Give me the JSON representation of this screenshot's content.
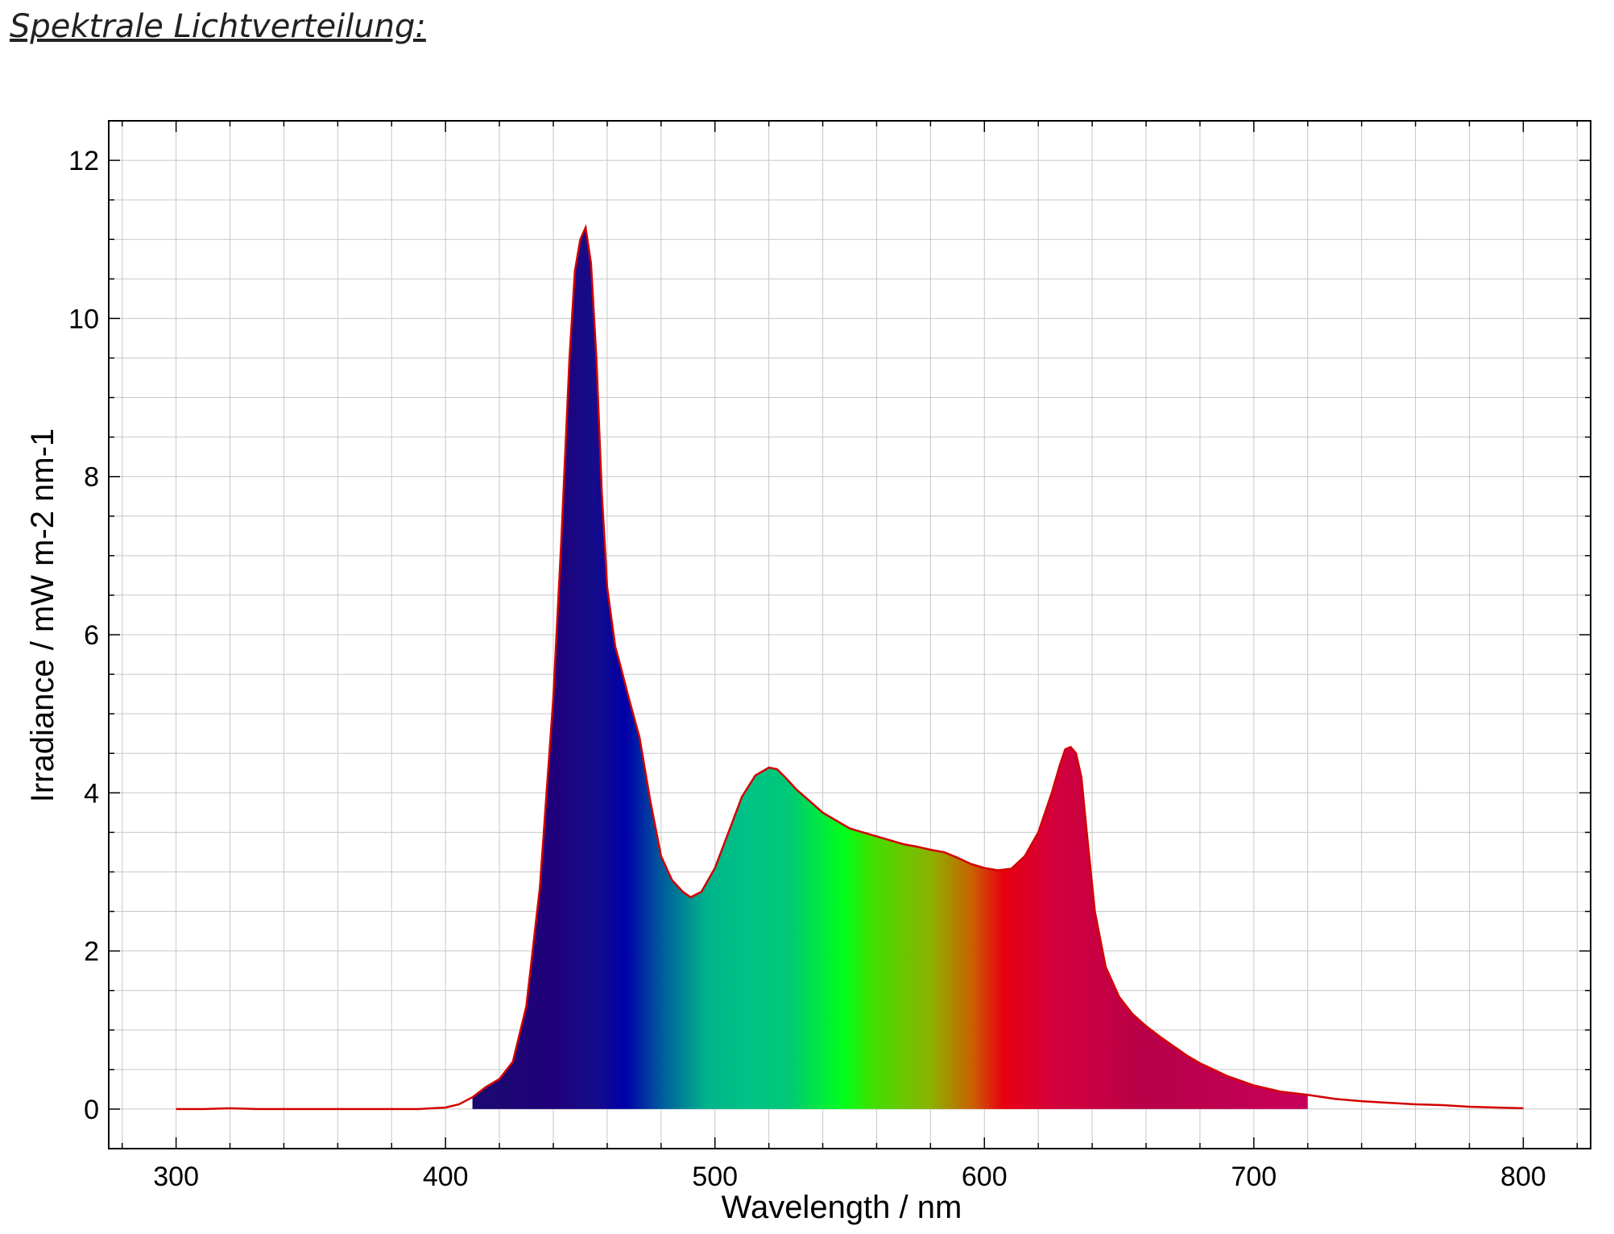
{
  "title": "Spektrale Lichtverteilung:",
  "colors": {
    "line": "#d40000",
    "grid": "#c8c8c8",
    "frame": "#000000"
  },
  "chart_data": {
    "type": "area",
    "xlabel": "Wavelength / nm",
    "ylabel": "Irradiance / mW m-2 nm-1",
    "xlim": [
      275,
      825
    ],
    "ylim": [
      -0.5,
      12.5
    ],
    "xticks": [
      300,
      400,
      500,
      600,
      700,
      800
    ],
    "yticks": [
      0,
      2,
      4,
      6,
      8,
      10,
      12
    ],
    "grid": true,
    "fill_range": [
      410,
      720
    ],
    "fill_colors": [
      [
        410,
        "#1a0a70"
      ],
      [
        440,
        "#20007a"
      ],
      [
        455,
        "#160d8a"
      ],
      [
        467,
        "#0000a8"
      ],
      [
        480,
        "#005a9c"
      ],
      [
        497,
        "#00b48c"
      ],
      [
        512,
        "#00c286"
      ],
      [
        527,
        "#00c878"
      ],
      [
        548,
        "#00ff1a"
      ],
      [
        558,
        "#40e000"
      ],
      [
        580,
        "#8cb200"
      ],
      [
        595,
        "#c86400"
      ],
      [
        607,
        "#e80010"
      ],
      [
        625,
        "#d4003c"
      ],
      [
        660,
        "#b80048"
      ],
      [
        720,
        "#c8005a"
      ]
    ],
    "series": [
      {
        "x": [
          300,
          310,
          320,
          330,
          340,
          350,
          360,
          370,
          380,
          390,
          395,
          400,
          405,
          410,
          415,
          420,
          425,
          430,
          435,
          440,
          443,
          446,
          448,
          450,
          452,
          454,
          456,
          458,
          460,
          463,
          465,
          468,
          472,
          476,
          480,
          484,
          488,
          491,
          495,
          500,
          505,
          510,
          515,
          520,
          523,
          526,
          530,
          535,
          540,
          545,
          550,
          555,
          560,
          565,
          570,
          575,
          580,
          585,
          590,
          595,
          600,
          605,
          610,
          615,
          620,
          625,
          628,
          630,
          632,
          634,
          636,
          638,
          641,
          645,
          650,
          655,
          660,
          665,
          670,
          675,
          680,
          685,
          690,
          700,
          710,
          720,
          730,
          740,
          750,
          760,
          770,
          780,
          790,
          800
        ],
        "y": [
          0,
          0,
          0.01,
          0,
          0,
          0,
          0,
          0,
          0,
          0,
          0.01,
          0.02,
          0.06,
          0.15,
          0.28,
          0.38,
          0.6,
          1.3,
          2.8,
          5.2,
          7.2,
          9.5,
          10.6,
          11.0,
          11.15,
          10.7,
          9.5,
          7.8,
          6.6,
          5.85,
          5.6,
          5.2,
          4.7,
          3.9,
          3.2,
          2.9,
          2.75,
          2.68,
          2.75,
          3.05,
          3.5,
          3.95,
          4.22,
          4.32,
          4.3,
          4.2,
          4.05,
          3.9,
          3.75,
          3.65,
          3.55,
          3.5,
          3.45,
          3.4,
          3.35,
          3.32,
          3.28,
          3.25,
          3.18,
          3.1,
          3.05,
          3.02,
          3.04,
          3.2,
          3.5,
          4.0,
          4.35,
          4.55,
          4.58,
          4.5,
          4.2,
          3.5,
          2.5,
          1.8,
          1.42,
          1.2,
          1.05,
          0.92,
          0.8,
          0.68,
          0.58,
          0.5,
          0.42,
          0.3,
          0.22,
          0.18,
          0.13,
          0.1,
          0.08,
          0.06,
          0.05,
          0.03,
          0.02,
          0.01
        ]
      }
    ]
  }
}
